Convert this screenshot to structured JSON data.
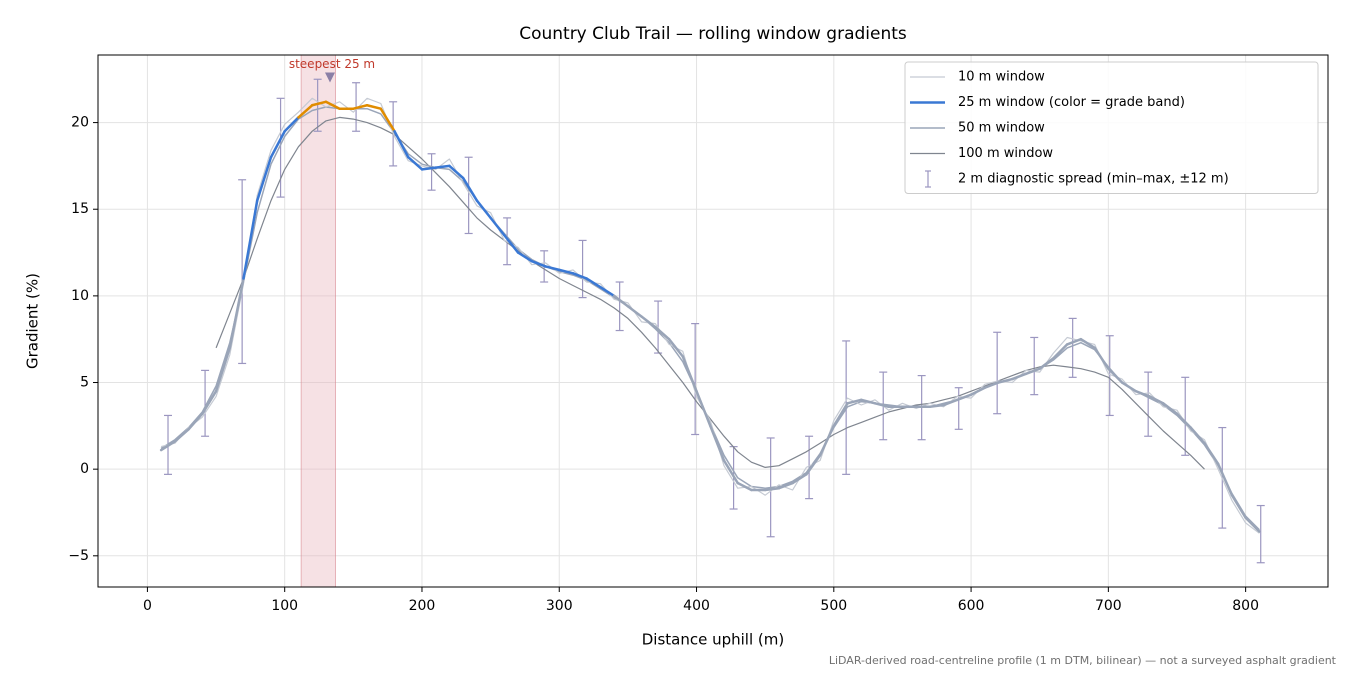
{
  "chart_data": {
    "type": "line",
    "title": "Country Club Trail — rolling window gradients",
    "xlabel": "Distance uphill (m)",
    "ylabel": "Gradient (%)",
    "footnote": "LiDAR-derived road-centreline profile (1 m DTM, bilinear) — not a surveyed asphalt gradient",
    "xlim": [
      -36,
      860
    ],
    "ylim": [
      -6.8,
      23.9
    ],
    "xticks": [
      0,
      100,
      200,
      300,
      400,
      500,
      600,
      700,
      800
    ],
    "yticks": [
      {
        "value": -5,
        "label": "−5"
      },
      0,
      5,
      10,
      15,
      20
    ],
    "grid": true,
    "legend": "upper right",
    "x": [
      10,
      20,
      30,
      40,
      50,
      60,
      70,
      80,
      90,
      100,
      110,
      120,
      130,
      140,
      150,
      160,
      170,
      180,
      190,
      200,
      210,
      220,
      230,
      240,
      250,
      260,
      270,
      280,
      290,
      300,
      310,
      320,
      330,
      340,
      350,
      360,
      370,
      380,
      390,
      400,
      410,
      420,
      430,
      440,
      450,
      460,
      470,
      480,
      490,
      500,
      510,
      520,
      530,
      540,
      550,
      560,
      570,
      580,
      590,
      600,
      610,
      620,
      630,
      640,
      650,
      660,
      670,
      680,
      690,
      700,
      710,
      720,
      730,
      740,
      750,
      760,
      770,
      780,
      790,
      800,
      810
    ],
    "series": [
      {
        "name": "10 m window",
        "color": "#c5cad3",
        "width": 1.2,
        "values": [
          1.3,
          1.5,
          2.4,
          3.0,
          4.2,
          6.6,
          10.7,
          15.8,
          18.4,
          19.9,
          20.6,
          21.4,
          20.9,
          21.2,
          20.6,
          21.4,
          21.1,
          19.2,
          17.8,
          17.5,
          17.3,
          17.9,
          16.5,
          15.2,
          14.8,
          13.2,
          12.8,
          11.8,
          11.9,
          11.3,
          11.5,
          10.8,
          10.7,
          9.8,
          9.6,
          8.5,
          8.4,
          7.2,
          6.8,
          4.2,
          2.8,
          0.2,
          -1.1,
          -1.0,
          -1.5,
          -0.9,
          -1.2,
          0.1,
          0.5,
          2.8,
          4.1,
          3.7,
          4.0,
          3.4,
          3.8,
          3.5,
          3.8,
          3.6,
          4.2,
          4.1,
          4.9,
          5.1,
          5.0,
          5.7,
          5.6,
          6.7,
          7.6,
          7.4,
          7.2,
          5.5,
          5.2,
          4.3,
          4.4,
          3.6,
          3.4,
          2.2,
          1.7,
          0.0,
          -1.8,
          -3.1,
          -3.7
        ]
      },
      {
        "name": "25 m window (color = grade band)",
        "color": "#3a78d4",
        "width": 2.5,
        "bands": [
          {
            "from": -100,
            "color": "#9aa5b8"
          },
          {
            "from": 10,
            "color": "#3a78d4"
          },
          {
            "from": 20,
            "color": "#e08c00"
          }
        ],
        "values": [
          1.1,
          1.6,
          2.3,
          3.2,
          4.5,
          7.0,
          11.0,
          15.5,
          18.0,
          19.5,
          20.3,
          21.0,
          21.2,
          20.8,
          20.8,
          21.0,
          20.8,
          19.5,
          18.0,
          17.3,
          17.4,
          17.5,
          16.8,
          15.5,
          14.5,
          13.5,
          12.5,
          12.0,
          11.7,
          11.5,
          11.3,
          11.0,
          10.5,
          10.0,
          9.4,
          8.8,
          8.2,
          7.5,
          6.5,
          4.5,
          2.5,
          0.5,
          -0.8,
          -1.2,
          -1.2,
          -1.1,
          -0.8,
          -0.3,
          0.8,
          2.5,
          3.8,
          4.0,
          3.8,
          3.6,
          3.6,
          3.6,
          3.6,
          3.7,
          4.0,
          4.3,
          4.7,
          5.0,
          5.2,
          5.5,
          5.8,
          6.4,
          7.2,
          7.5,
          7.0,
          5.8,
          5.0,
          4.5,
          4.2,
          3.8,
          3.2,
          2.4,
          1.5,
          0.3,
          -1.5,
          -2.8,
          -3.6
        ]
      },
      {
        "name": "50 m window",
        "color": "#9aa5b8",
        "width": 1.5,
        "values": [
          1.2,
          1.7,
          2.4,
          3.3,
          4.8,
          7.3,
          10.8,
          14.8,
          17.6,
          19.2,
          20.2,
          20.7,
          20.9,
          20.8,
          20.8,
          20.8,
          20.5,
          19.4,
          18.2,
          17.6,
          17.4,
          17.3,
          16.6,
          15.5,
          14.5,
          13.6,
          12.7,
          12.1,
          11.7,
          11.4,
          11.2,
          10.9,
          10.4,
          9.9,
          9.4,
          8.8,
          8.1,
          7.3,
          6.2,
          4.5,
          2.6,
          0.8,
          -0.5,
          -1.0,
          -1.1,
          -1.0,
          -0.7,
          -0.2,
          0.9,
          2.4,
          3.6,
          3.9,
          3.8,
          3.7,
          3.6,
          3.6,
          3.6,
          3.8,
          4.0,
          4.3,
          4.7,
          5.0,
          5.2,
          5.5,
          5.8,
          6.3,
          7.0,
          7.3,
          6.9,
          5.9,
          5.0,
          4.5,
          4.1,
          3.7,
          3.1,
          2.3,
          1.4,
          0.2,
          -1.4,
          -2.7,
          -3.5
        ]
      },
      {
        "name": "100 m window",
        "color": "#7f858f",
        "width": 1.2,
        "values": [
          null,
          null,
          null,
          null,
          7.0,
          9.0,
          11.0,
          13.3,
          15.5,
          17.3,
          18.6,
          19.5,
          20.1,
          20.3,
          20.2,
          20.0,
          19.7,
          19.3,
          18.6,
          17.9,
          17.1,
          16.3,
          15.4,
          14.5,
          13.8,
          13.2,
          12.6,
          12.0,
          11.5,
          11.0,
          10.6,
          10.2,
          9.8,
          9.3,
          8.7,
          7.9,
          7.0,
          6.0,
          5.0,
          3.9,
          2.9,
          1.9,
          1.0,
          0.4,
          0.1,
          0.2,
          0.6,
          1.0,
          1.5,
          2.0,
          2.4,
          2.7,
          3.0,
          3.3,
          3.5,
          3.7,
          3.8,
          4.0,
          4.2,
          4.5,
          4.8,
          5.1,
          5.4,
          5.7,
          5.9,
          6.0,
          5.9,
          5.8,
          5.6,
          5.3,
          4.6,
          3.8,
          3.0,
          2.2,
          1.5,
          0.8,
          0.0,
          null,
          null,
          null,
          null
        ]
      }
    ],
    "errorbars": {
      "name": "2 m diagnostic spread (min–max, ±12 m)",
      "color": "#9b96c0",
      "x": [
        15,
        42,
        69,
        97,
        124,
        152,
        179,
        207,
        234,
        262,
        289,
        317,
        344,
        372,
        399,
        427,
        454,
        482,
        509,
        536,
        564,
        591,
        619,
        646,
        674,
        701,
        729,
        756,
        783,
        811
      ],
      "lo": [
        -0.3,
        1.9,
        6.1,
        15.7,
        19.5,
        19.5,
        17.5,
        16.1,
        13.6,
        11.8,
        10.8,
        9.9,
        8.0,
        6.7,
        2.0,
        -2.3,
        -3.9,
        -1.7,
        -0.3,
        1.7,
        1.7,
        2.3,
        3.2,
        4.3,
        5.3,
        3.1,
        1.9,
        0.8,
        -3.4,
        -5.4
      ],
      "hi": [
        3.1,
        5.7,
        16.7,
        21.4,
        22.5,
        22.3,
        21.2,
        18.2,
        18.0,
        14.5,
        12.6,
        13.2,
        10.8,
        9.7,
        8.4,
        1.3,
        1.8,
        1.9,
        7.4,
        5.6,
        5.4,
        4.7,
        7.9,
        7.6,
        8.7,
        7.7,
        5.6,
        5.3,
        2.4,
        -2.1
      ]
    },
    "highlight": {
      "span": [
        112,
        137
      ],
      "color": "#e8b4bb",
      "text": "steepest 25 m",
      "text_color": "#c0392b",
      "marker_x": 133,
      "marker_y": 22.6,
      "marker_color": "#8a7fa6"
    }
  }
}
